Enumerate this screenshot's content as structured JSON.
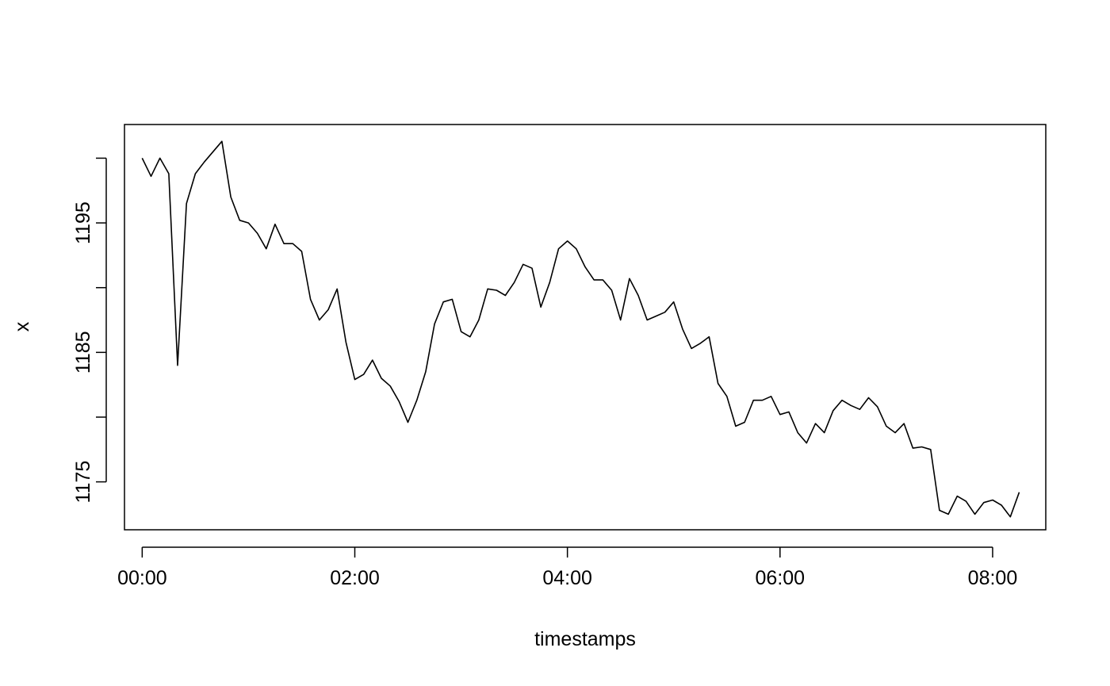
{
  "chart_data": {
    "type": "line",
    "title": "",
    "xlabel": "timestamps",
    "ylabel": "x",
    "x_unit": "time (HH:MM)",
    "x_range": [
      "-00:10",
      "08:30"
    ],
    "y_range": [
      1171.3,
      1202.6
    ],
    "x_ticks": [
      "00:00",
      "02:00",
      "04:00",
      "06:00",
      "08:00"
    ],
    "y_ticks": [
      1175,
      1180,
      1185,
      1190,
      1195,
      1200
    ],
    "y_tick_labels": [
      "1175",
      "",
      "1185",
      "",
      "1195",
      ""
    ],
    "grid": false,
    "legend": "none",
    "line_color": "#000000",
    "series": [
      {
        "x": [
          "00:00",
          "00:05",
          "00:10",
          "00:15",
          "00:20",
          "00:25",
          "00:30",
          "00:35",
          "00:40",
          "00:45",
          "00:50",
          "00:55",
          "01:00",
          "01:05",
          "01:10",
          "01:15",
          "01:20",
          "01:25",
          "01:30",
          "01:35",
          "01:40",
          "01:45",
          "01:50",
          "01:55",
          "02:00",
          "02:05",
          "02:10",
          "02:15",
          "02:20",
          "02:25",
          "02:30",
          "02:35",
          "02:40",
          "02:45",
          "02:50",
          "02:55",
          "03:00",
          "03:05",
          "03:10",
          "03:15",
          "03:20",
          "03:25",
          "03:30",
          "03:35",
          "03:40",
          "03:45",
          "03:50",
          "03:55",
          "04:00",
          "04:05",
          "04:10",
          "04:15",
          "04:20",
          "04:25",
          "04:30",
          "04:35",
          "04:40",
          "04:45",
          "04:50",
          "04:55",
          "05:00",
          "05:05",
          "05:10",
          "05:15",
          "05:20",
          "05:25",
          "05:30",
          "05:35",
          "05:40",
          "05:45",
          "05:50",
          "05:55",
          "06:00",
          "06:05",
          "06:10",
          "06:15",
          "06:20",
          "06:25",
          "06:30",
          "06:35",
          "06:40",
          "06:45",
          "06:50",
          "06:55",
          "07:00",
          "07:05",
          "07:10",
          "07:15",
          "07:20",
          "07:25",
          "07:30",
          "07:35",
          "07:40",
          "07:45",
          "07:50",
          "07:55",
          "08:00",
          "08:05",
          "08:10",
          "08:15"
        ],
        "values": [
          1200.0,
          1198.6,
          1200.0,
          1198.8,
          1184.0,
          1196.5,
          1198.8,
          1199.7,
          1200.5,
          1201.3,
          1197.0,
          1195.2,
          1195.0,
          1194.2,
          1193.0,
          1194.9,
          1193.4,
          1193.4,
          1192.8,
          1189.1,
          1187.5,
          1188.3,
          1189.9,
          1185.8,
          1182.9,
          1183.3,
          1184.4,
          1183.0,
          1182.4,
          1181.2,
          1179.6,
          1181.3,
          1183.5,
          1187.2,
          1188.9,
          1189.1,
          1186.6,
          1186.2,
          1187.5,
          1189.9,
          1189.8,
          1189.4,
          1190.4,
          1191.8,
          1191.5,
          1188.5,
          1190.4,
          1193.0,
          1193.6,
          1193.0,
          1191.6,
          1190.6,
          1190.6,
          1189.8,
          1187.5,
          1190.7,
          1189.4,
          1187.5,
          1187.8,
          1188.1,
          1188.9,
          1186.8,
          1185.3,
          1185.7,
          1186.2,
          1182.6,
          1181.6,
          1179.3,
          1179.6,
          1181.3,
          1181.3,
          1181.6,
          1180.2,
          1180.4,
          1178.8,
          1178.0,
          1179.5,
          1178.8,
          1180.5,
          1181.3,
          1180.9,
          1180.6,
          1181.5,
          1180.8,
          1179.3,
          1178.8,
          1179.5,
          1177.6,
          1177.7,
          1177.5,
          1172.8,
          1172.5,
          1173.9,
          1173.5,
          1172.5,
          1173.4,
          1173.6,
          1173.2,
          1172.3,
          1174.2
        ]
      }
    ]
  }
}
